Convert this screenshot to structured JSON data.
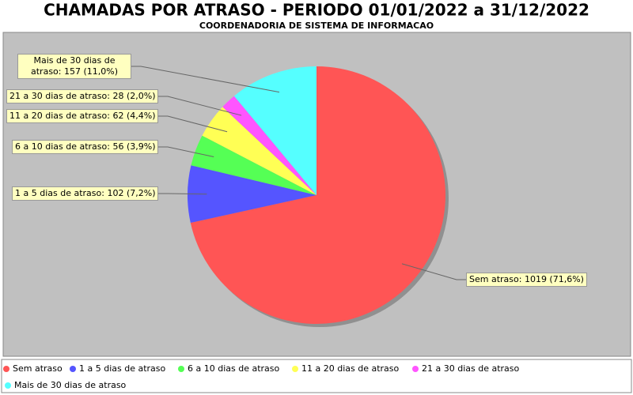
{
  "chart_data": {
    "type": "pie",
    "title": "CHAMADAS POR ATRASO - PERIODO 01/01/2022 a 31/12/2022",
    "subtitle": "COORDENADORIA DE SISTEMA DE INFORMACAO",
    "categories": [
      "Sem atraso",
      "1 a 5 dias de atraso",
      "6 a 10 dias de atraso",
      "11 a 20 dias de atraso",
      "21 a 30 dias de atraso",
      "Mais de 30 dias de atraso"
    ],
    "values": [
      1019,
      102,
      56,
      62,
      28,
      157
    ],
    "value_labels": [
      "Sem atraso: 1019 (71,6%)",
      "1 a 5 dias de atraso: 102 (7,2%)",
      "6 a 10 dias de atraso: 56 (3,9%)",
      "11 a 20 dias de atraso: 62 (4,4%)",
      "21 a 30 dias de atraso: 28 (2,0%)",
      "Mais de 30 dias de atraso: 157 (11,0%)"
    ],
    "colors": [
      "#ff5555",
      "#5555ff",
      "#55ff55",
      "#ffff55",
      "#ff55ff",
      "#55ffff"
    ],
    "legend": "bottom"
  }
}
